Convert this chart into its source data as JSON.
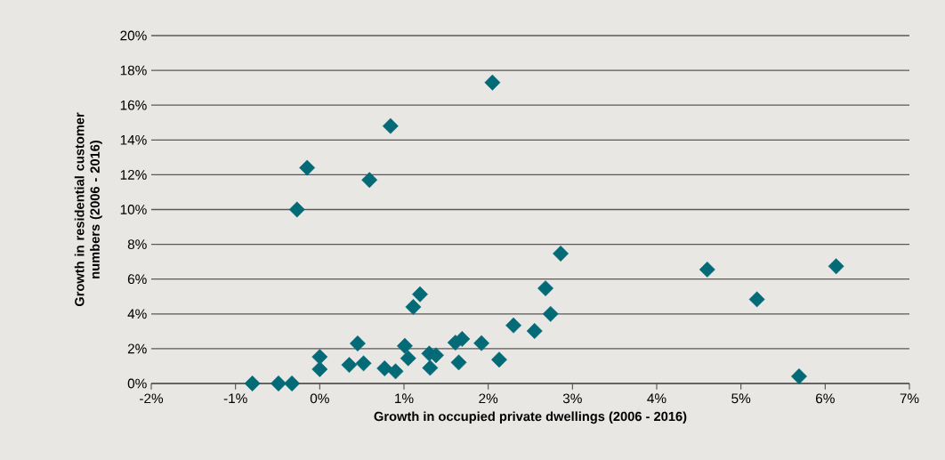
{
  "chart_data": {
    "type": "scatter",
    "xlabel": "Growth in occupied private dwellings (2006 - 2016)",
    "ylabel": "Growth in residential customer numbers (2006 - 2016)",
    "xlim": [
      -2,
      7
    ],
    "ylim": [
      0,
      20
    ],
    "xticks": [
      {
        "value": -2,
        "label": "-2%"
      },
      {
        "value": -1,
        "label": "-1%"
      },
      {
        "value": 0,
        "label": "0%"
      },
      {
        "value": 1,
        "label": "1%"
      },
      {
        "value": 2,
        "label": "2%"
      },
      {
        "value": 3,
        "label": "3%"
      },
      {
        "value": 4,
        "label": "4%"
      },
      {
        "value": 5,
        "label": "5%"
      },
      {
        "value": 6,
        "label": "6%"
      },
      {
        "value": 7,
        "label": "7%"
      }
    ],
    "yticks": [
      {
        "value": 0,
        "label": "0%"
      },
      {
        "value": 2,
        "label": "2%"
      },
      {
        "value": 4,
        "label": "4%"
      },
      {
        "value": 6,
        "label": "6%"
      },
      {
        "value": 8,
        "label": "8%"
      },
      {
        "value": 10,
        "label": "10%"
      },
      {
        "value": 12,
        "label": "12%"
      },
      {
        "value": 14,
        "label": "14%"
      },
      {
        "value": 16,
        "label": "16%"
      },
      {
        "value": 18,
        "label": "18%"
      },
      {
        "value": 20,
        "label": "20%"
      }
    ],
    "grid": "y",
    "marker": "diamond",
    "series": [
      {
        "color": "#006a77",
        "x": [
          -0.8,
          -0.49,
          -0.33,
          -0.27,
          -0.15,
          0.0,
          0.0,
          0.35,
          0.52,
          0.45,
          0.59,
          0.84,
          0.77,
          0.9,
          1.01,
          1.05,
          1.11,
          1.19,
          1.31,
          1.3,
          1.38,
          1.61,
          1.69,
          1.65,
          1.92,
          2.05,
          2.13,
          2.3,
          2.55,
          2.68,
          2.74,
          2.86,
          4.6,
          5.19,
          5.69,
          6.13
        ],
        "values": [
          0,
          0,
          0,
          10.0,
          12.4,
          1.53,
          0.82,
          1.07,
          1.16,
          2.3,
          11.7,
          14.8,
          0.87,
          0.7,
          2.16,
          1.45,
          4.4,
          5.13,
          0.9,
          1.72,
          1.62,
          2.35,
          2.56,
          1.21,
          2.32,
          17.3,
          1.37,
          3.34,
          3.02,
          5.47,
          4.0,
          7.47,
          6.55,
          4.84,
          0.41,
          6.74
        ]
      }
    ]
  }
}
